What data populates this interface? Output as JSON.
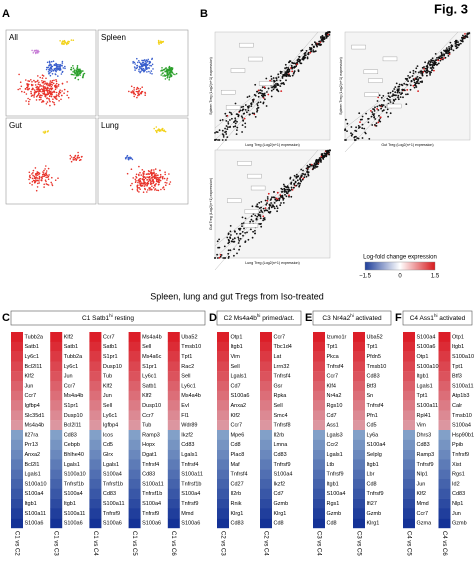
{
  "figure_label": "Fig. 3",
  "panel_a": {
    "letter": "A",
    "subpanels": [
      "All",
      "Spleen",
      "Gut",
      "Lung"
    ]
  },
  "panel_b": {
    "letter": "B",
    "plots": [
      {
        "x_label": "Lung Treg (Log2(n+1) expression)",
        "y_label": "Spleen Treg (Log2(n+1) expression)"
      },
      {
        "x_label": "Gut Treg (Log2(n+1) expression)",
        "y_label": "Spleen Treg (Log2(n+1) expression)"
      },
      {
        "x_label": "Lung Treg (Log2(n+1) expression)",
        "y_label": "Gut Treg (Log2(n+1) expression)"
      }
    ]
  },
  "legend": {
    "title": "Log-fold change expression",
    "ticks": [
      "−1.5",
      "0",
      "1.5"
    ]
  },
  "section_title": "Spleen, lung and gut Tregs from Iso-treated",
  "heatmaps": [
    {
      "letter": "C",
      "title": {
        "main": "C1 Satb1",
        "sup": "hi",
        "rest": " resting"
      },
      "columns": [
        {
          "label": "C1 vs C2",
          "up": [
            "Tubb2a",
            "Satb1",
            "Ly6c1",
            "Bcl2l11",
            "Klf2",
            "Jun",
            "Ccr7",
            "Igfbp4",
            "Slc35d1",
            "Ms4a4b"
          ],
          "down": [
            "Il27ra",
            "Prr13",
            "Anxa2",
            "Bcl2l1",
            "Lgals1",
            "S100a10",
            "S100a4",
            "Itgb1",
            "S100a11",
            "S100a6"
          ]
        },
        {
          "label": "C1 vs C3",
          "up": [
            "Klf2",
            "Satb1",
            "Tubb2a",
            "Ly6c1",
            "Jun",
            "Ccr7",
            "Ms4a4b",
            "S1pr1",
            "Dusp10",
            "Bcl2l11"
          ],
          "down": [
            "Cd83",
            "Cebpb",
            "Bhlhe40",
            "Lgals1",
            "S100a10",
            "Tnfrsf1b",
            "S100a4",
            "Itgb1",
            "S100a11",
            "S100a6"
          ]
        },
        {
          "label": "C1 vs C4",
          "up": [
            "Ccr7",
            "Satb1",
            "S1pr1",
            "Dusp10",
            "Tub",
            "Klf2",
            "Jun",
            "Sell",
            "Ly6c1",
            "Igfbp4"
          ],
          "down": [
            "Icos",
            "Cd5",
            "Glrx",
            "Lgals1",
            "S100a4",
            "Tnfrsf1b",
            "Cd83",
            "S100a11",
            "Tnfrsf9",
            "S100a6"
          ]
        },
        {
          "label": "C1 vs C5",
          "up": [
            "Ms4a4b",
            "Sell",
            "Ms4a6c",
            "S1pr1",
            "Ly6c1",
            "Satb1",
            "Klf2",
            "Dusp10",
            "Ccr7",
            "Tub"
          ],
          "down": [
            "Ramp3",
            "Hopx",
            "Dgat1",
            "Tnfrsf4",
            "Cd83",
            "S100a11",
            "Tnfrsf1b",
            "S100a4",
            "Tnfrsf9",
            "S100a6"
          ]
        },
        {
          "label": "C1 vs C6",
          "up": [
            "Uba52",
            "Tmsb10",
            "Tpt1",
            "Rac2",
            "Sell",
            "Ly6c1",
            "Ms4a4b",
            "Evl",
            "Fl1",
            "Wdr89"
          ],
          "down": [
            "Ikzf2",
            "Cd83",
            "Lgals1",
            "Tnfrsf4",
            "S100a11",
            "Tnfrsf1b",
            "S100a4",
            "Tnfrsf9",
            "Mmd",
            "S100a6"
          ]
        }
      ]
    },
    {
      "letter": "D",
      "title": {
        "main": "C2 Ms4a4b",
        "sup": "hi",
        "rest": " primed/act."
      },
      "columns": [
        {
          "label": "C2 vs C3",
          "up": [
            "Otp1",
            "Itgb1",
            "Vim",
            "Sell",
            "Lgals1",
            "Cd7",
            "S100a6",
            "Anxa2",
            "Klf2",
            "Ccr7"
          ],
          "down": [
            "Mpe6",
            "Cd8",
            "Plac8",
            "Maf",
            "Tnfrsf4",
            "Cd27",
            "Il2rb",
            "Rnik",
            "Klrg1",
            "Cd83"
          ]
        },
        {
          "label": "C2 vs C4",
          "up": [
            "Ccr7",
            "Tbc1d4",
            "Lat",
            "Lrrn32",
            "Tnfrsf4",
            "Gsr",
            "Rpka",
            "Sell",
            "Smc4",
            "Tnfrsf8"
          ],
          "down": [
            "Il2rb",
            "Lmna",
            "Cd83",
            "Tnfrsf9",
            "S100a4",
            "Ikzf2",
            "Cd7",
            "Gzmb",
            "Klrg1",
            "Cd8"
          ]
        }
      ]
    },
    {
      "letter": "E",
      "title": {
        "main": "C3 Nr4a2",
        "sup": "hi",
        "rest": " activated"
      },
      "columns": [
        {
          "label": "C3 vs C4",
          "up": [
            "Izumo1r",
            "Tpt1",
            "Pkca",
            "Tnfrsf4",
            "Ccr7",
            "Klf4",
            "Nr4a2",
            "Rgs10",
            "Cd7",
            "Ass1"
          ],
          "down": [
            "Lgals3",
            "Ccr2",
            "Lgals1",
            "Ltb",
            "Tnfrsf9",
            "Itgb1",
            "S100a4",
            "Rgs1",
            "Gzmb",
            "Cd8"
          ]
        },
        {
          "label": "C3 vs C5",
          "up": [
            "Uba52",
            "Tpt1",
            "Pfdn5",
            "Tmsb10",
            "Cd83",
            "Btf3",
            "Sn",
            "Tnfrsf4",
            "Pfn1",
            "Cd5"
          ],
          "down": [
            "Ly6a",
            "S100a4",
            "Selplg",
            "Itgb1",
            "Lbr",
            "Cd8",
            "Tnfrsf9",
            "Ifi27",
            "Gzmb",
            "Klrg1"
          ]
        }
      ]
    },
    {
      "letter": "F",
      "title": {
        "main": "C4 Ass1",
        "sup": "hi",
        "rest": " activated"
      },
      "columns": [
        {
          "label": "C4 vs C5",
          "up": [
            "S100a4",
            "S100a6",
            "Otp1",
            "S100a10",
            "Itgb1",
            "Lgals1",
            "Tpt1",
            "S100a11",
            "Rpl41",
            "Vim"
          ],
          "down": [
            "Dhrs3",
            "Cd83",
            "Ramp3",
            "Tnfrsf9",
            "Nlp1",
            "Jun",
            "Klf2",
            "Mmd",
            "Ccr7",
            "Gzma"
          ]
        },
        {
          "label": "C4 vs C6",
          "up": [
            "Otp1",
            "Itgb1",
            "S100a10",
            "Tpt1",
            "Btf3",
            "S100a11",
            "Atp1b3",
            "Calr",
            "Tmsb10",
            "S100a4"
          ],
          "down": [
            "Hsp90b1",
            "Ppib",
            "Tnfrsf9",
            "Xist",
            "Rgs1",
            "Id2",
            "Cd83",
            "Nlp1",
            "Jun",
            "Gzmb"
          ]
        }
      ]
    }
  ]
}
